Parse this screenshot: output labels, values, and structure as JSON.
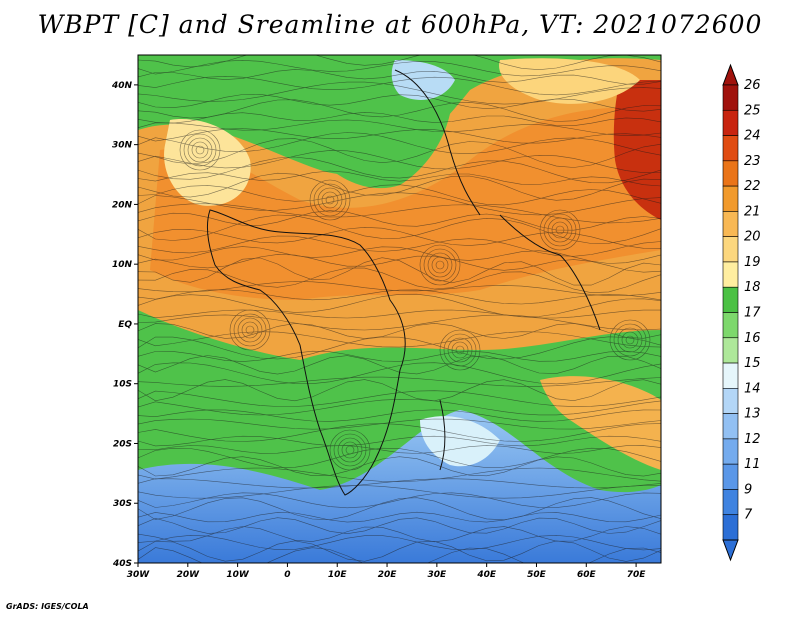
{
  "title": "WBPT [C] and Sreamline at 600hPa, VT: 2021072600",
  "credit": "GrADS: IGES/COLA",
  "map": {
    "lat_ticks": [
      "40N",
      "30N",
      "20N",
      "10N",
      "EQ",
      "10S",
      "20S",
      "30S",
      "40S"
    ],
    "lon_ticks": [
      "30W",
      "20W",
      "10W",
      "0",
      "10E",
      "20E",
      "30E",
      "40E",
      "50E",
      "60E",
      "70E"
    ],
    "lat_range": [
      -40,
      45
    ],
    "lon_range": [
      -30,
      75
    ]
  },
  "colorbar": {
    "labels": [
      "7",
      "9",
      "11",
      "12",
      "13",
      "14",
      "15",
      "16",
      "17",
      "18",
      "19",
      "20",
      "21",
      "22",
      "23",
      "24",
      "25",
      "26"
    ],
    "colors": [
      "#2c6fd6",
      "#3f83e0",
      "#5a97e8",
      "#74abee",
      "#92c0f3",
      "#b3d6f7",
      "#e6f6fb",
      "#aee89a",
      "#7dd86c",
      "#4bc144",
      "#ffeea0",
      "#fcd77e",
      "#f8b854",
      "#f19a2c",
      "#ea7418",
      "#e04c12",
      "#c8240f",
      "#a0120c"
    ]
  },
  "legend_colors": {
    "cool": "#3a78d8",
    "mild": "#4fc24a",
    "warm": "#f09a32",
    "hot": "#c8240f"
  }
}
